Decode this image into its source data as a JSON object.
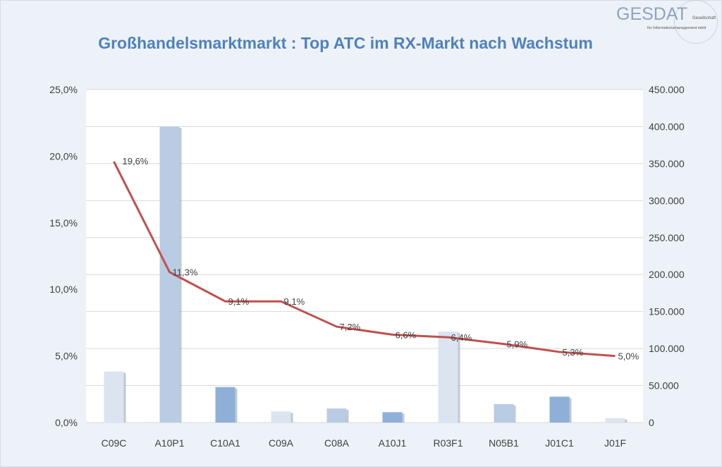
{
  "title": "Großhandelsmarktmarkt : Top ATC im RX-Markt nach Wachstum",
  "logo": {
    "name": "GESDAT",
    "line1": "Gesellschaft",
    "line2": "für Informationsmanagement mbH"
  },
  "chart_data": {
    "type": "bar+line",
    "title": "Großhandelsmarktmarkt : Top ATC im RX-Markt nach Wachstum",
    "categories": [
      "C09C",
      "A10P1",
      "C10A1",
      "C09A",
      "C08A",
      "A10J1",
      "R03F1",
      "N05B1",
      "J01C1",
      "J01F"
    ],
    "bars": {
      "axis": "right",
      "values": [
        69000,
        400000,
        48000,
        15000,
        19000,
        14000,
        123000,
        25000,
        35000,
        6000
      ],
      "colors": [
        "#dbe4f0",
        "#b8cce4",
        "#8eb0d8",
        "#dbe4f0",
        "#b8cce4",
        "#8eb0d8",
        "#dbe4f0",
        "#b8cce4",
        "#8eb0d8",
        "#dbe4f0"
      ]
    },
    "line": {
      "axis": "left",
      "values": [
        19.6,
        11.3,
        9.1,
        9.1,
        7.2,
        6.6,
        6.4,
        5.9,
        5.3,
        5.0
      ],
      "labels": [
        "19,6%",
        "11,3%",
        "9,1%",
        "9,1%",
        "7,2%",
        "6,6%",
        "6,4%",
        "5,9%",
        "5,3%",
        "5,0%"
      ],
      "color": "#c0504d"
    },
    "left_axis": {
      "range": [
        0,
        25
      ],
      "ticks": [
        "0,0%",
        "5,0%",
        "10,0%",
        "15,0%",
        "20,0%",
        "25,0%"
      ]
    },
    "right_axis": {
      "range": [
        0,
        450000
      ],
      "ticks": [
        "0",
        "50.000",
        "100.000",
        "150.000",
        "200.000",
        "250.000",
        "300.000",
        "350.000",
        "400.000",
        "450.000"
      ]
    },
    "grid": true
  }
}
